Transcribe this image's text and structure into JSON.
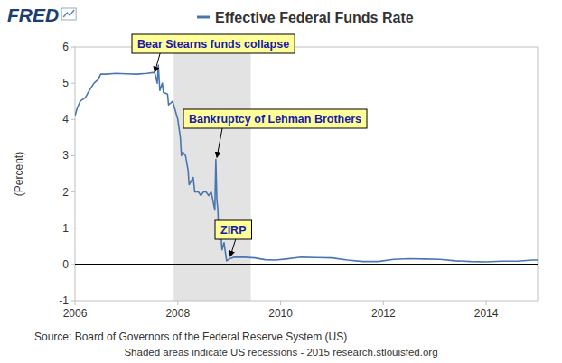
{
  "chart_data": {
    "type": "line",
    "logo": "FRED",
    "y_label": "(Percent)",
    "source": "Source: Board of Governors of the Federal Reserve System (US)",
    "note": "Shaded areas indicate US recessions - 2015 research.stlouisfed.org",
    "xlim": [
      2006,
      2015
    ],
    "xticks": [
      2006,
      2008,
      2010,
      2012,
      2014
    ],
    "ylim": [
      -1,
      6
    ],
    "yticks": [
      -1,
      0,
      1,
      2,
      3,
      4,
      5,
      6
    ],
    "grid": false,
    "hlines": [
      0
    ],
    "recessions": [
      {
        "start": 2007.92,
        "end": 2009.42
      }
    ],
    "annotations": [
      {
        "text": "Bear Stearns funds collapse",
        "x": 2007.55,
        "y": 5.3
      },
      {
        "text": "Bankruptcy of Lehman Brothers",
        "x": 2008.76,
        "y": 2.95
      },
      {
        "text": "ZIRP",
        "x": 2009.02,
        "y": 0.22
      }
    ],
    "x": [
      2006.0,
      2006.04,
      2006.1,
      2006.2,
      2006.28,
      2006.37,
      2006.45,
      2006.5,
      2006.6,
      2006.8,
      2007.0,
      2007.2,
      2007.4,
      2007.55,
      2007.6,
      2007.62,
      2007.65,
      2007.7,
      2007.72,
      2007.8,
      2007.82,
      2007.9,
      2007.95,
      2008.0,
      2008.05,
      2008.07,
      2008.1,
      2008.15,
      2008.2,
      2008.22,
      2008.3,
      2008.33,
      2008.4,
      2008.45,
      2008.5,
      2008.55,
      2008.6,
      2008.65,
      2008.72,
      2008.74,
      2008.76,
      2008.78,
      2008.8,
      2008.83,
      2008.86,
      2008.9,
      2008.95,
      2009.0,
      2009.1,
      2009.3,
      2009.5,
      2009.7,
      2009.9,
      2010.1,
      2010.4,
      2010.7,
      2011.0,
      2011.3,
      2011.6,
      2011.9,
      2012.2,
      2012.5,
      2012.8,
      2013.1,
      2013.4,
      2013.7,
      2014.0,
      2014.3,
      2014.6,
      2014.9,
      2015.0
    ],
    "series": [
      {
        "name": "Effective Federal Funds Rate",
        "color": "#4a76b0",
        "values": [
          4.1,
          4.3,
          4.5,
          4.6,
          4.8,
          5.0,
          5.1,
          5.25,
          5.25,
          5.27,
          5.26,
          5.25,
          5.27,
          5.3,
          5.0,
          5.5,
          4.8,
          5.0,
          4.75,
          4.7,
          4.4,
          4.5,
          4.25,
          4.0,
          3.5,
          3.0,
          3.1,
          3.0,
          2.6,
          2.2,
          2.4,
          2.0,
          2.0,
          1.9,
          2.0,
          2.0,
          1.9,
          2.0,
          1.5,
          2.9,
          1.8,
          1.5,
          0.7,
          1.0,
          0.4,
          0.6,
          0.1,
          0.15,
          0.2,
          0.2,
          0.18,
          0.13,
          0.12,
          0.15,
          0.2,
          0.19,
          0.18,
          0.12,
          0.08,
          0.08,
          0.14,
          0.16,
          0.15,
          0.14,
          0.1,
          0.08,
          0.07,
          0.09,
          0.09,
          0.12,
          0.12
        ]
      }
    ]
  }
}
